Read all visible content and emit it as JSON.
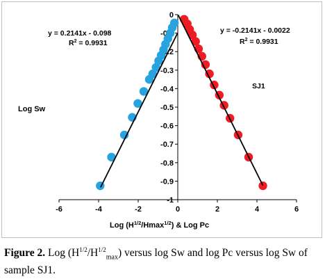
{
  "chart_data": {
    "type": "scatter",
    "xlim": [
      -6,
      6
    ],
    "ylim": [
      -1,
      0
    ],
    "x_ticks": [
      -6,
      -4,
      -2,
      0,
      2,
      4,
      6
    ],
    "y_ticks": [
      0,
      -0.1,
      -0.2,
      -0.3,
      -0.4,
      -0.5,
      -0.6,
      -0.7,
      -0.8,
      -0.9,
      -1
    ],
    "x_tick_labels": [
      "-6",
      "-4",
      "-2",
      "0",
      "2",
      "4",
      "6"
    ],
    "y_tick_labels": [
      "0",
      "-0.1",
      "-0.2",
      "-0.3",
      "-0.4",
      "-0.5",
      "-0.6",
      "-0.7",
      "-0.8",
      "-0.9",
      "-1"
    ],
    "xlabel_main": "Log (H",
    "xlabel_sup1": "1/2",
    "xlabel_mid": "/Hmax",
    "xlabel_sup2": "1/2",
    "xlabel_end": ") & Log Pc",
    "ylabel": "Log Sw",
    "grid": false,
    "series": [
      {
        "color": "#29a3e0",
        "x": [
          -3.92,
          -3.35,
          -2.7,
          -2.3,
          -2.02,
          -1.72,
          -1.44,
          -1.27,
          -1.1,
          -0.97,
          -0.84,
          -0.72,
          -0.62,
          -0.5,
          -0.38,
          -0.28,
          -0.17
        ],
        "y": [
          -0.925,
          -0.77,
          -0.65,
          -0.555,
          -0.48,
          -0.415,
          -0.35,
          -0.32,
          -0.285,
          -0.25,
          -0.22,
          -0.19,
          -0.16,
          -0.13,
          -0.1,
          -0.07,
          -0.045
        ],
        "trend": {
          "x": [
            -3.9,
            -0.02
          ],
          "y": [
            -0.933,
            -0.102
          ]
        }
      },
      {
        "color": "#ee1c24",
        "x": [
          0.32,
          0.48,
          0.6,
          0.74,
          0.9,
          1.05,
          1.22,
          1.4,
          1.6,
          1.84,
          2.1,
          2.34,
          2.64,
          3.05,
          3.58,
          4.3
        ],
        "y": [
          -0.025,
          -0.05,
          -0.08,
          -0.11,
          -0.145,
          -0.185,
          -0.225,
          -0.27,
          -0.32,
          -0.38,
          -0.435,
          -0.49,
          -0.56,
          -0.65,
          -0.77,
          -0.925
        ],
        "trend": {
          "x": [
            0.02,
            4.3
          ],
          "y": [
            -0.002,
            -0.923
          ]
        }
      }
    ],
    "annotations": {
      "left_eq": "y = 0.2141x - 0.098",
      "left_r2_prefix": "R",
      "left_r2_sup": "2",
      "left_r2_value": " = 0.9931",
      "right_eq": "y = -0.2141x - 0.0022",
      "right_r2_prefix": "R",
      "right_r2_sup": "2",
      "right_r2_value": " = 0.9931",
      "sample": "SJ1"
    }
  },
  "caption": {
    "label": "Figure 2.",
    "t1": " Log (H",
    "sup1": "1/2",
    "t2": "/H",
    "sup2": "1/2",
    "sub": "max",
    "t3": ") versus log Sw and log Pc versus log Sw of sample SJ1."
  }
}
